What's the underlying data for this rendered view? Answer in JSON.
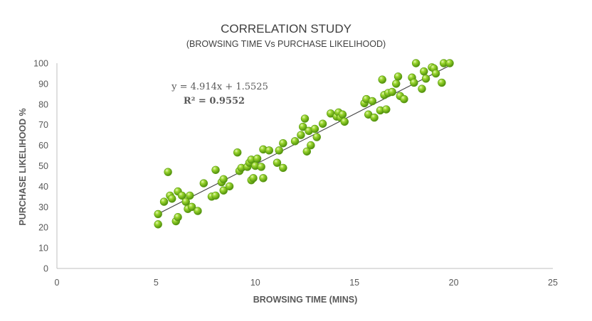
{
  "chart_data": {
    "type": "scatter",
    "title": "CORRELATION STUDY",
    "subtitle": "(BROWSING TIME Vs PURCHASE LIKELIHOOD)",
    "xlabel": "BROWSING TIME (MINS)",
    "ylabel": "PURCHASE LIKELIHOOD %",
    "xlim": [
      0,
      25
    ],
    "ylim": [
      0,
      100
    ],
    "xticks": [
      "0",
      "5",
      "10",
      "15",
      "20",
      "25"
    ],
    "yticks": [
      "0",
      "10",
      "20",
      "30",
      "40",
      "50",
      "60",
      "70",
      "80",
      "90",
      "100"
    ],
    "grid": false,
    "legend": "none",
    "marker_color": "#7cc418",
    "trendline": {
      "equation": "y = 4.914x + 1.5525",
      "r_squared": "R² = 0.9552",
      "slope": 4.914,
      "intercept": 1.5525,
      "x_range": [
        5.1,
        19.9
      ],
      "color": "#404040"
    },
    "points": [
      [
        5.1,
        26.5
      ],
      [
        5.1,
        21.5
      ],
      [
        5.4,
        32.5
      ],
      [
        5.6,
        47.0
      ],
      [
        5.7,
        35.5
      ],
      [
        5.8,
        34.0
      ],
      [
        6.0,
        23.0
      ],
      [
        6.1,
        25.0
      ],
      [
        6.1,
        37.5
      ],
      [
        6.3,
        35.5
      ],
      [
        6.5,
        32.5
      ],
      [
        6.6,
        29.0
      ],
      [
        6.7,
        35.5
      ],
      [
        6.8,
        30.0
      ],
      [
        7.1,
        28.0
      ],
      [
        7.4,
        41.5
      ],
      [
        7.8,
        35.0
      ],
      [
        8.0,
        35.5
      ],
      [
        8.0,
        48.0
      ],
      [
        8.3,
        42.0
      ],
      [
        8.4,
        43.5
      ],
      [
        8.4,
        38.0
      ],
      [
        8.7,
        40.0
      ],
      [
        9.1,
        56.5
      ],
      [
        9.2,
        47.5
      ],
      [
        9.3,
        49.0
      ],
      [
        9.6,
        49.5
      ],
      [
        9.7,
        51.5
      ],
      [
        9.8,
        53.0
      ],
      [
        9.8,
        43.0
      ],
      [
        9.9,
        44.0
      ],
      [
        10.0,
        50.0
      ],
      [
        10.1,
        53.5
      ],
      [
        10.3,
        49.5
      ],
      [
        10.4,
        44.0
      ],
      [
        10.4,
        58.0
      ],
      [
        10.7,
        57.5
      ],
      [
        11.1,
        51.5
      ],
      [
        11.2,
        57.5
      ],
      [
        11.4,
        61.0
      ],
      [
        11.4,
        49.0
      ],
      [
        12.0,
        62.0
      ],
      [
        12.3,
        65.0
      ],
      [
        12.4,
        69.0
      ],
      [
        12.5,
        73.0
      ],
      [
        12.6,
        57.0
      ],
      [
        12.7,
        67.0
      ],
      [
        12.8,
        60.0
      ],
      [
        13.0,
        68.0
      ],
      [
        13.1,
        64.0
      ],
      [
        13.4,
        70.5
      ],
      [
        13.8,
        75.5
      ],
      [
        14.1,
        74.0
      ],
      [
        14.2,
        76.0
      ],
      [
        14.3,
        73.5
      ],
      [
        14.4,
        75.0
      ],
      [
        14.5,
        71.5
      ],
      [
        15.5,
        80.5
      ],
      [
        15.6,
        82.5
      ],
      [
        15.7,
        75.0
      ],
      [
        15.9,
        81.5
      ],
      [
        16.0,
        73.5
      ],
      [
        16.3,
        77.0
      ],
      [
        16.4,
        92.0
      ],
      [
        16.5,
        84.5
      ],
      [
        16.6,
        77.5
      ],
      [
        16.7,
        85.5
      ],
      [
        16.9,
        86.0
      ],
      [
        17.1,
        90.0
      ],
      [
        17.2,
        93.5
      ],
      [
        17.3,
        84.0
      ],
      [
        17.5,
        82.5
      ],
      [
        17.9,
        93.0
      ],
      [
        18.0,
        90.5
      ],
      [
        18.1,
        100.0
      ],
      [
        18.4,
        87.5
      ],
      [
        18.5,
        96.0
      ],
      [
        18.6,
        92.5
      ],
      [
        18.9,
        98.0
      ],
      [
        19.0,
        97.5
      ],
      [
        19.1,
        95.0
      ],
      [
        19.4,
        90.5
      ],
      [
        19.5,
        100.0
      ],
      [
        19.8,
        100.0
      ]
    ]
  }
}
